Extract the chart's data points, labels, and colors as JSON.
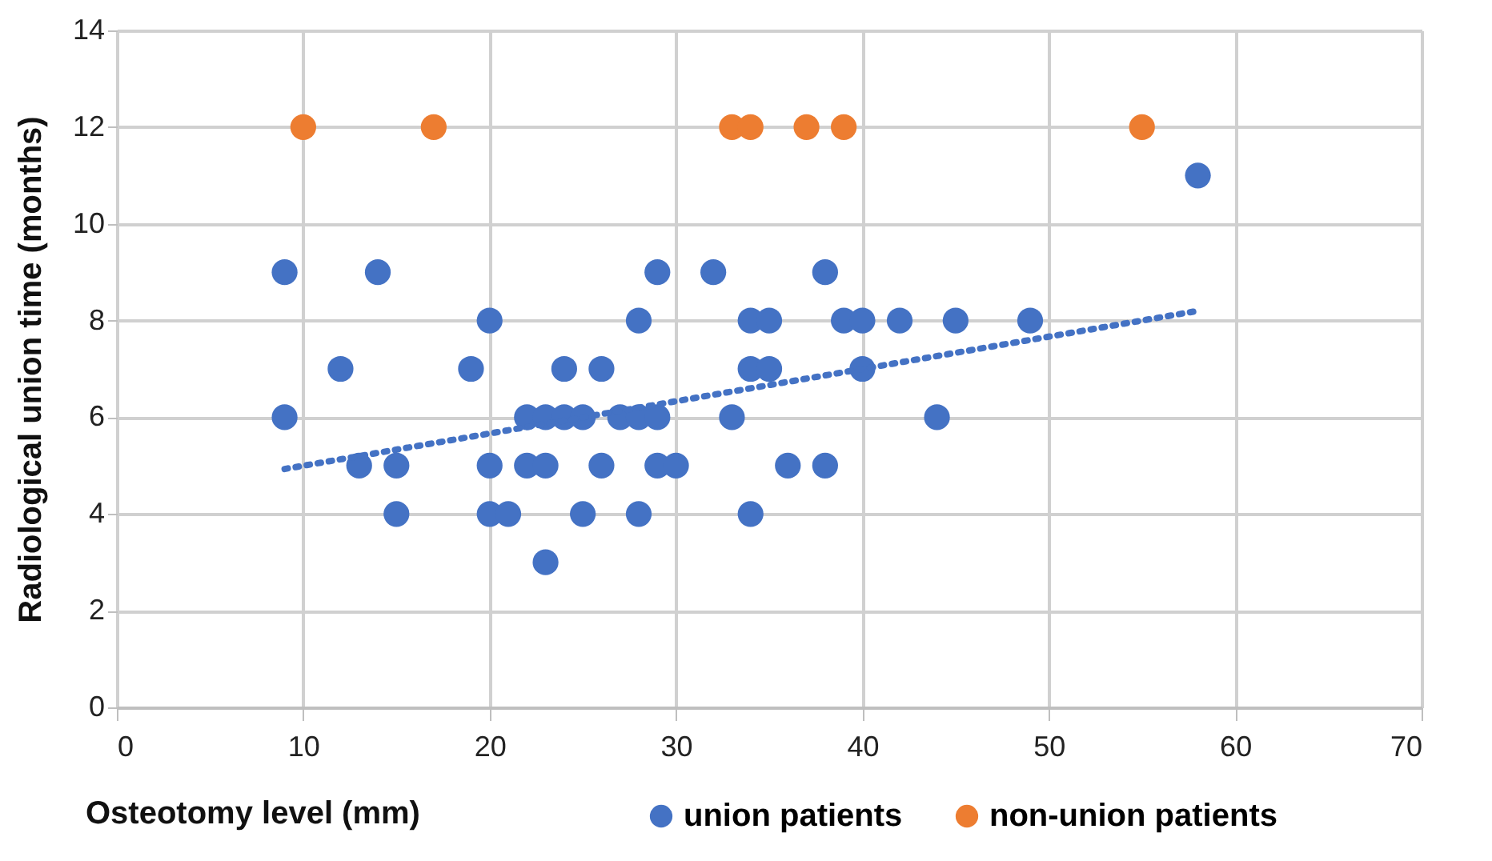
{
  "chart_data": {
    "type": "scatter",
    "xlabel": "Osteotomy level (mm)",
    "ylabel": "Radiological union time (months)",
    "xlim": [
      0,
      70
    ],
    "xticks": [
      0,
      10,
      20,
      30,
      40,
      50,
      60,
      70
    ],
    "ylim": [
      0,
      14
    ],
    "yticks": [
      0,
      2,
      4,
      6,
      8,
      10,
      12,
      14
    ],
    "grid": true,
    "legend": "bottom",
    "marker": "circle",
    "series": [
      {
        "name": "union patients",
        "color": "#4472c4",
        "x": [
          9,
          14,
          29,
          32,
          38,
          20,
          28,
          34,
          35,
          39,
          40,
          42,
          45,
          49,
          12,
          19,
          24,
          26,
          34,
          35,
          40,
          9,
          22,
          23,
          24,
          25,
          27,
          28,
          29,
          33,
          44,
          13,
          15,
          20,
          22,
          23,
          26,
          29,
          30,
          36,
          38,
          15,
          20,
          21,
          25,
          28,
          34,
          23,
          58
        ],
        "values": [
          9,
          9,
          9,
          9,
          9,
          8,
          8,
          8,
          8,
          8,
          8,
          8,
          8,
          8,
          7,
          7,
          7,
          7,
          7,
          7,
          7,
          6,
          6,
          6,
          6,
          6,
          6,
          6,
          6,
          6,
          6,
          5,
          5,
          5,
          5,
          5,
          5,
          5,
          5,
          5,
          5,
          4,
          4,
          4,
          4,
          4,
          4,
          3,
          11
        ]
      },
      {
        "name": "non-union patients",
        "color": "#ed7d31",
        "x": [
          10,
          17,
          33,
          34,
          37,
          39,
          55
        ],
        "values": [
          12,
          12,
          12,
          12,
          12,
          12,
          12
        ]
      },
      {
        "type": "line",
        "color": "#4472c4",
        "line_style": "dotted",
        "marker": "none",
        "x": [
          9,
          58
        ],
        "values": [
          4.93,
          8.2
        ]
      }
    ]
  }
}
